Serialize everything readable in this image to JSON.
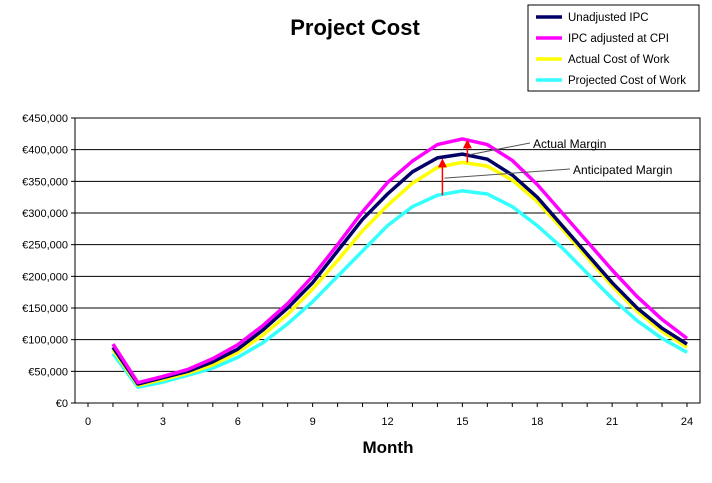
{
  "chart_data": {
    "type": "line",
    "title": "Project Cost",
    "xlabel": "Month",
    "ylabel": "",
    "xlim": [
      0,
      24
    ],
    "ylim": [
      0,
      450000
    ],
    "x_ticks": [
      0,
      3,
      6,
      9,
      12,
      15,
      18,
      21,
      24
    ],
    "y_ticks": [
      0,
      50000,
      100000,
      150000,
      200000,
      250000,
      300000,
      350000,
      400000,
      450000
    ],
    "y_tick_labels": [
      "€0",
      "€50,000",
      "€100,000",
      "€150,000",
      "€200,000",
      "€250,000",
      "€300,000",
      "€350,000",
      "€400,000",
      "€450,000"
    ],
    "grid": "horizontal",
    "legend_position": "top-right",
    "x": [
      1,
      2,
      3,
      4,
      5,
      6,
      7,
      8,
      9,
      10,
      11,
      12,
      13,
      14,
      15,
      16,
      17,
      18,
      19,
      20,
      21,
      22,
      23,
      24
    ],
    "series": [
      {
        "name": "Unadjusted IPC",
        "color": "#000066",
        "values": [
          88000,
          30000,
          40000,
          50000,
          65000,
          85000,
          115000,
          150000,
          190000,
          240000,
          290000,
          330000,
          365000,
          387000,
          393000,
          385000,
          360000,
          325000,
          280000,
          235000,
          190000,
          150000,
          118000,
          93000
        ]
      },
      {
        "name": "IPC adjusted at CPI",
        "color": "#ff00ff",
        "values": [
          93000,
          32000,
          42000,
          53000,
          70000,
          92000,
          122000,
          157000,
          200000,
          250000,
          302000,
          348000,
          382000,
          408000,
          417000,
          408000,
          383000,
          345000,
          300000,
          255000,
          210000,
          168000,
          132000,
          102000
        ]
      },
      {
        "name": "Actual Cost of Work",
        "color": "#ffff00",
        "values": [
          84000,
          28000,
          37000,
          47000,
          60000,
          80000,
          107000,
          140000,
          180000,
          225000,
          272000,
          312000,
          347000,
          372000,
          380000,
          374000,
          352000,
          318000,
          275000,
          230000,
          185000,
          145000,
          113000,
          88000
        ]
      },
      {
        "name": "Projected Cost of Work",
        "color": "#33ffff",
        "values": [
          78000,
          25000,
          33000,
          44000,
          55000,
          72000,
          95000,
          125000,
          160000,
          200000,
          240000,
          280000,
          310000,
          328000,
          335000,
          330000,
          310000,
          280000,
          245000,
          205000,
          165000,
          130000,
          102000,
          80000
        ]
      }
    ],
    "annotations": [
      {
        "text": "Actual Margin",
        "x": 15,
        "y_from": 380000,
        "y_to": 417000
      },
      {
        "text": "Anticipated Margin",
        "x": 14.2,
        "y_from": 328000,
        "y_to": 387000
      }
    ]
  }
}
